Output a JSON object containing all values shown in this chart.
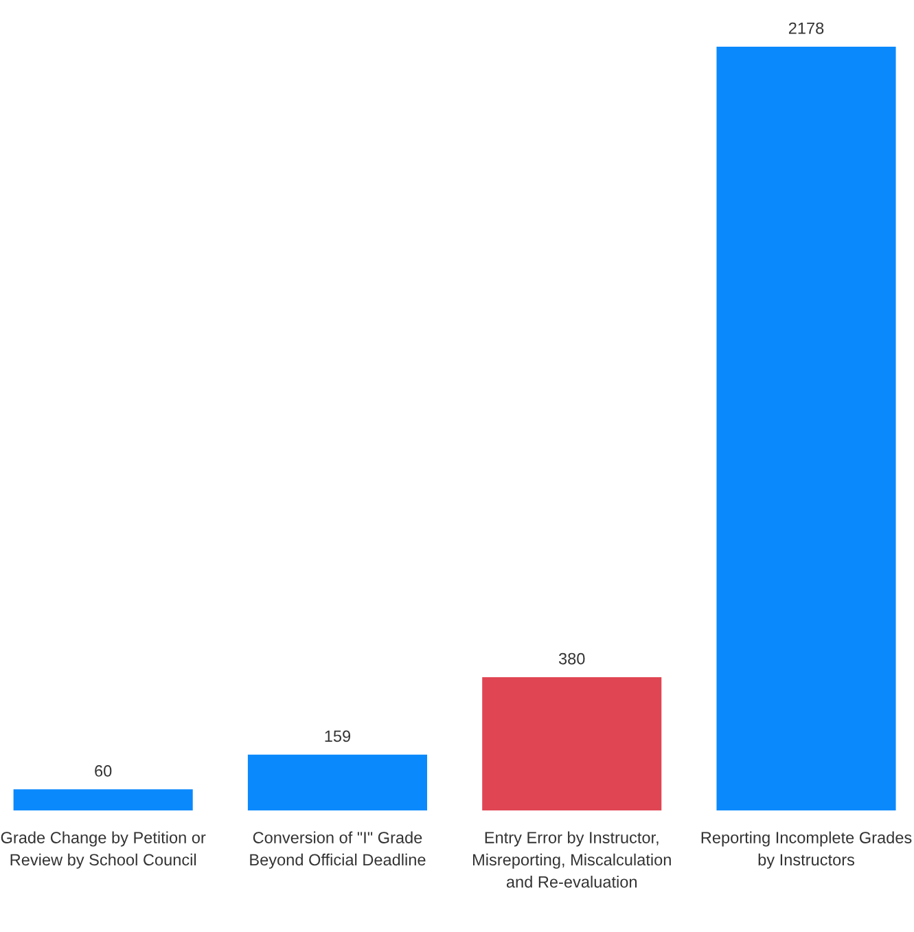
{
  "chart_data": {
    "type": "bar",
    "categories": [
      "Grade Change by Petition or\nReview by School Council",
      "Conversion of \"I\" Grade\nBeyond Official Deadline",
      "Entry Error by Instructor,\nMisreporting, Miscalculation\nand Re-evaluation",
      "Reporting Incomplete Grades\nby Instructors"
    ],
    "values": [
      60,
      159,
      380,
      2178
    ],
    "colors": [
      "#0a89fc",
      "#0a89fc",
      "#e04553",
      "#0a89fc"
    ],
    "data_labels": true,
    "grid": false,
    "legend": false
  }
}
